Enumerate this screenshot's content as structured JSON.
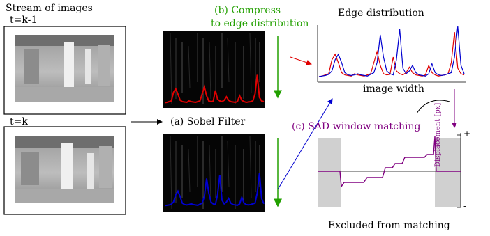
{
  "labels": {
    "stream": "Stream of images",
    "t_prev": "t=k-1",
    "t_curr": "t=k",
    "step_a": "(a) Sobel Filter",
    "step_b_line1": "(b) Compress",
    "step_b_line2": "to edge distribution",
    "edge_dist_title": "Edge distribution",
    "image_width": "image width",
    "step_c": "(c) SAD window matching",
    "displacement": "Displacement [px]",
    "plus": "+",
    "minus": "-",
    "excluded": "Excluded from matching"
  },
  "colors": {
    "red": "#e00000",
    "blue": "#0000d0",
    "green": "#22a000",
    "purple": "#800080",
    "gray_region": "#d0d0d0"
  },
  "chart_data": {
    "type": "line",
    "title": "Edge distribution",
    "xlabel": "image width",
    "ylabel": "",
    "series": [
      {
        "values": [
          0.05,
          0.06,
          0.08,
          0.1,
          0.35,
          0.45,
          0.3,
          0.12,
          0.08,
          0.07,
          0.06,
          0.1,
          0.08,
          0.07,
          0.06,
          0.08,
          0.1,
          0.3,
          0.5,
          0.25,
          0.1,
          0.08,
          0.09,
          0.4,
          0.15,
          0.1,
          0.08,
          0.12,
          0.22,
          0.12,
          0.08,
          0.07,
          0.06,
          0.08,
          0.25,
          0.12,
          0.08,
          0.06,
          0.07,
          0.08,
          0.1,
          0.3,
          0.85,
          0.2,
          0.1,
          0.08
        ]
      },
      {
        "values": [
          0.05,
          0.06,
          0.07,
          0.09,
          0.15,
          0.35,
          0.45,
          0.3,
          0.12,
          0.08,
          0.07,
          0.08,
          0.1,
          0.08,
          0.07,
          0.06,
          0.09,
          0.12,
          0.3,
          0.8,
          0.4,
          0.15,
          0.1,
          0.08,
          0.35,
          0.9,
          0.2,
          0.1,
          0.15,
          0.25,
          0.12,
          0.08,
          0.07,
          0.06,
          0.1,
          0.28,
          0.12,
          0.08,
          0.07,
          0.08,
          0.1,
          0.12,
          0.4,
          0.95,
          0.25,
          0.1
        ]
      }
    ]
  }
}
